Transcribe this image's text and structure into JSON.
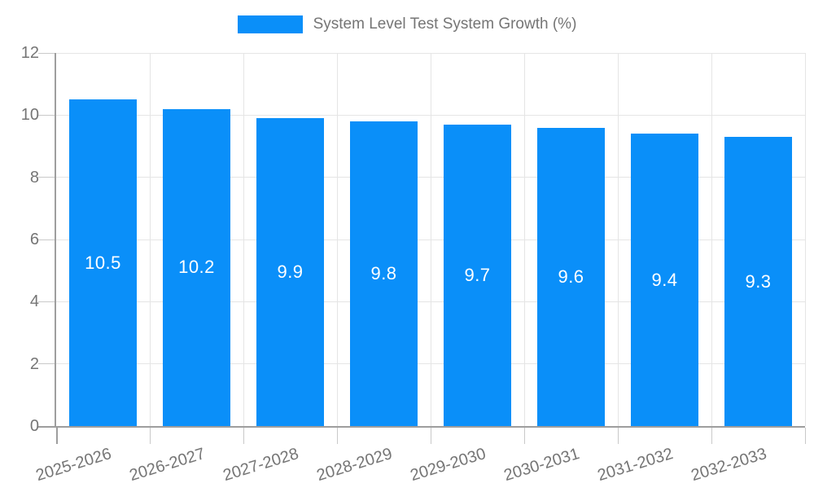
{
  "chart": {
    "legend": {
      "label": "System Level Test System Growth (%)"
    }
  },
  "colors": {
    "background": "#ffffff",
    "bar": "#0a8ff9",
    "axis": "#9e9e9e",
    "grid": "#e5e5e5",
    "tick": "#c9c9c9",
    "label_text": "#757575",
    "bar_label_text": "#ffffff"
  },
  "chart_data": {
    "type": "bar",
    "title": "System Level Test System Growth (%)",
    "categories": [
      "2025-2026",
      "2026-2027",
      "2027-2028",
      "2028-2029",
      "2029-2030",
      "2030-2031",
      "2031-2032",
      "2032-2033"
    ],
    "values": [
      10.5,
      10.2,
      9.9,
      9.8,
      9.7,
      9.6,
      9.4,
      9.3
    ],
    "bar_labels": [
      "10.5",
      "10.2",
      "9.9",
      "9.8",
      "9.7",
      "9.6",
      "9.4",
      "9.3"
    ],
    "xlabel": "",
    "ylabel": "",
    "ylim": [
      0,
      12
    ],
    "yticks": [
      0,
      2,
      4,
      6,
      8,
      10,
      12
    ],
    "grid": true,
    "legend_position": "top",
    "x_tick_rotation_deg": -17
  }
}
